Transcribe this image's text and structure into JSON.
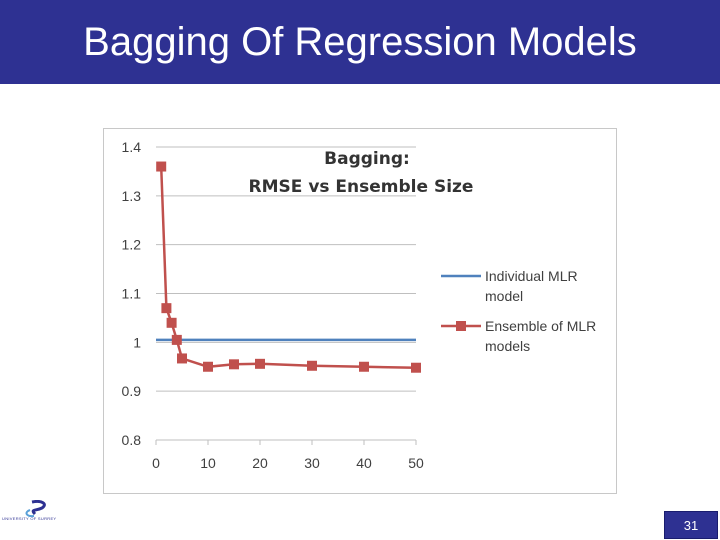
{
  "slide": {
    "title": "Bagging Of Regression Models",
    "page_number": "31",
    "logo_text": "UNIVERSITY OF SURREY"
  },
  "colors": {
    "title_bar": "#2e3192",
    "individual_series": "#4f81bd",
    "ensemble_series": "#c0504d"
  },
  "icons": {
    "logo": "university-logo-icon"
  },
  "chart_data": {
    "type": "line",
    "title_lines": [
      "Bagging:",
      "RMSE vs Ensemble Size"
    ],
    "xlabel": "",
    "ylabel": "",
    "xlim": [
      0,
      50
    ],
    "ylim": [
      0.8,
      1.4
    ],
    "x_ticks": [
      "0",
      "10",
      "20",
      "30",
      "40",
      "50"
    ],
    "y_ticks": [
      "0.8",
      "0.9",
      "1",
      "1.1",
      "1.2",
      "1.3",
      "1.4"
    ],
    "grid": "horizontal",
    "legend_position": "right",
    "series": [
      {
        "name": "Individual MLR model",
        "legend_lines": [
          "Individual MLR",
          "model"
        ],
        "x": [
          0,
          50
        ],
        "values": [
          1.005,
          1.005
        ],
        "marker": "none"
      },
      {
        "name": "Ensemble of MLR models",
        "legend_lines": [
          "Ensemble of MLR",
          "models"
        ],
        "x": [
          1,
          2,
          3,
          4,
          5,
          10,
          15,
          20,
          30,
          40,
          50
        ],
        "values": [
          1.36,
          1.07,
          1.04,
          1.005,
          0.967,
          0.95,
          0.955,
          0.956,
          0.952,
          0.95,
          0.948
        ],
        "marker": "square"
      }
    ]
  }
}
